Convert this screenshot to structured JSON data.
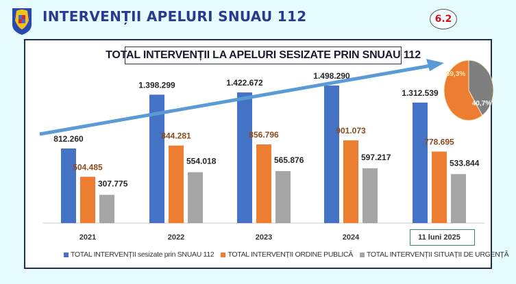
{
  "header": {
    "title": "INTERVENȚII APELURI SNUAU 112",
    "slide_number": "6.2",
    "crest_icon": "romania-coat-of-arms-icon"
  },
  "colors": {
    "background": "#e6fbfd",
    "title": "#2b3a8f",
    "slide_number": "#d0101a",
    "series_total": "#4472c4",
    "series_public_order": "#ed7d31",
    "series_emergency": "#a5a5a5",
    "trend_arrow": "#5b9bd5",
    "pie_gray": "#7f7f7f"
  },
  "chart_data": {
    "type": "bar",
    "title": "TOTAL INTERVENȚII LA APELURI SESIZATE PRIN SNUAU 112",
    "categories": [
      "2021",
      "2022",
      "2023",
      "2024",
      "11 luni 2025"
    ],
    "series": [
      {
        "name": "TOTAL INTERVENȚII sesizate prin SNUAU 112",
        "values": [
          812260,
          1398299,
          1422672,
          1498290,
          1312539
        ],
        "labels": [
          "812.260",
          "1.398.299",
          "1.422.672",
          "1.498.290",
          "1.312.539"
        ]
      },
      {
        "name": "TOTAL INTERVENȚII ORDINE PUBLICĂ",
        "values": [
          504485,
          844281,
          856796,
          901073,
          778695
        ],
        "labels": [
          "504.485",
          "844.281",
          "856.796",
          "901.073",
          "778.695"
        ]
      },
      {
        "name": "TOTAL INTERVENȚII SITUAȚII DE URGENȚĂ",
        "values": [
          307775,
          554018,
          565876,
          597217,
          533844
        ],
        "labels": [
          "307.775",
          "554.018",
          "565.876",
          "597.217",
          "533.844"
        ]
      }
    ],
    "xlabel": "",
    "ylabel": "",
    "ylim": [
      0,
      1600000
    ],
    "grid": false,
    "legend": "bottom",
    "trend_arrow": "increasing",
    "pie": {
      "type": "pie",
      "slices": [
        {
          "name": "TOTAL INTERVENȚII ORDINE PUBLICĂ",
          "value": 59.3,
          "label": "59,3%"
        },
        {
          "name": "TOTAL INTERVENȚII SITUAȚII DE URGENȚĂ",
          "value": 40.7,
          "label": "40,7%"
        }
      ]
    }
  }
}
